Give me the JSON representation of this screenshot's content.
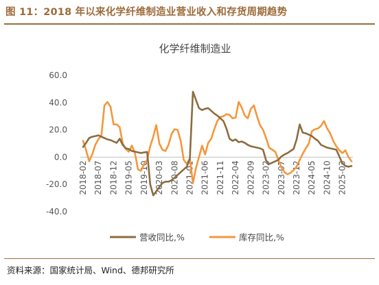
{
  "header": {
    "figure_title": "图 11：2018 年以来化学纤维制造业营业收入和存货周期趋势"
  },
  "footer": {
    "source": "资料来源：国家统计局、Wind、德邦研究所"
  },
  "colors": {
    "brand": "#9c6b3a",
    "revenue": "#8c6b3e",
    "inventory": "#f5963c"
  },
  "chart_data": {
    "type": "line",
    "title": "化学纤维制造业",
    "xlabel": "",
    "ylabel": "",
    "ylim": [
      -40,
      60
    ],
    "yticks": [
      "60.0",
      "40.0",
      "20.0",
      "0.0",
      "-20.0",
      "-40.0"
    ],
    "ytick_values": [
      60,
      40,
      20,
      0,
      -20,
      -40
    ],
    "grid": false,
    "legend_position": "bottom",
    "xticks": [
      "2018-02",
      "2018-07",
      "2018-12",
      "2019-05",
      "2019-10",
      "2020-03",
      "2020-08",
      "2021-01",
      "2021-06",
      "2021-11",
      "2022-04",
      "2022-09",
      "2023-02",
      "2023-07",
      "2023-12",
      "2024-05",
      "2024-10",
      "2025-03"
    ],
    "x": [
      "2018-02",
      "2018-03",
      "2018-04",
      "2018-05",
      "2018-06",
      "2018-07",
      "2018-08",
      "2018-09",
      "2018-10",
      "2018-11",
      "2018-12",
      "2019-01",
      "2019-02",
      "2019-03",
      "2019-04",
      "2019-05",
      "2019-06",
      "2019-07",
      "2019-08",
      "2019-09",
      "2019-10",
      "2019-11",
      "2019-12",
      "2020-01",
      "2020-02",
      "2020-03",
      "2020-04",
      "2020-05",
      "2020-06",
      "2020-07",
      "2020-08",
      "2020-09",
      "2020-10",
      "2020-11",
      "2020-12",
      "2021-01",
      "2021-02",
      "2021-03",
      "2021-04",
      "2021-05",
      "2021-06",
      "2021-07",
      "2021-08",
      "2021-09",
      "2021-10",
      "2021-11",
      "2021-12",
      "2022-01",
      "2022-02",
      "2022-03",
      "2022-04",
      "2022-05",
      "2022-06",
      "2022-07",
      "2022-08",
      "2022-09",
      "2022-10",
      "2022-11",
      "2022-12",
      "2023-01",
      "2023-02",
      "2023-03",
      "2023-04",
      "2023-05",
      "2023-06",
      "2023-07",
      "2023-08",
      "2023-09",
      "2023-10",
      "2023-11",
      "2023-12",
      "2024-01",
      "2024-02",
      "2024-03",
      "2024-04",
      "2024-05",
      "2024-06",
      "2024-07",
      "2024-08",
      "2024-09",
      "2024-10",
      "2024-11",
      "2024-12",
      "2025-01",
      "2025-02",
      "2025-03",
      "2025-04",
      "2025-05",
      "2025-06"
    ],
    "series": [
      {
        "name": "营收同比,%",
        "color": "#8c6b3e",
        "values": [
          7.5,
          10.5,
          14.0,
          15.0,
          15.5,
          16.0,
          15.0,
          14.0,
          13.0,
          12.5,
          11.5,
          10.5,
          13.5,
          9.0,
          6.5,
          6.0,
          4.5,
          4.0,
          3.5,
          3.0,
          3.5,
          3.8,
          -20.0,
          -28.0,
          -25.0,
          -22.0,
          -19.0,
          -18.0,
          -18.0,
          -17.0,
          -15.0,
          -13.0,
          -11.0,
          -9.0,
          -7.0,
          -1.0,
          48.0,
          42.0,
          36.0,
          34.5,
          35.5,
          36.0,
          34.0,
          32.0,
          30.5,
          28.5,
          26.5,
          21.0,
          13.5,
          12.0,
          13.0,
          11.0,
          11.5,
          10.5,
          9.0,
          8.0,
          7.5,
          7.0,
          6.5,
          5.5,
          -2.5,
          -5.0,
          -4.0,
          -3.0,
          -2.0,
          0.5,
          2.0,
          3.0,
          4.5,
          6.0,
          13.0,
          24.0,
          18.0,
          17.5,
          16.5,
          15.5,
          13.5,
          12.0,
          9.0,
          8.0,
          7.0,
          6.5,
          6.0,
          5.5,
          0.5,
          -4.5,
          -6.5,
          -7.0,
          -6.5
        ]
      },
      {
        "name": "库存同比,%",
        "color": "#f5963c",
        "values": [
          12.0,
          5.0,
          -3.0,
          2.0,
          9.0,
          13.0,
          16.0,
          38.0,
          40.5,
          37.0,
          24.0,
          24.0,
          22.0,
          10.0,
          6.0,
          4.0,
          8.5,
          3.0,
          -9.0,
          -10.0,
          -5.0,
          -2.0,
          8.0,
          15.0,
          23.5,
          10.0,
          5.5,
          4.5,
          9.0,
          17.0,
          20.5,
          20.0,
          12.0,
          -2.0,
          -5.0,
          -1.0,
          -19.0,
          -8.0,
          0.0,
          8.5,
          2.0,
          10.5,
          13.5,
          20.5,
          26.5,
          29.5,
          30.0,
          31.5,
          31.0,
          28.5,
          29.0,
          40.5,
          36.5,
          30.5,
          28.5,
          35.5,
          38.0,
          30.0,
          23.5,
          20.0,
          14.0,
          7.0,
          5.5,
          4.0,
          -2.0,
          -7.5,
          -11.0,
          -12.5,
          -11.5,
          -9.5,
          -7.0,
          -2.0,
          2.5,
          6.5,
          10.0,
          19.0,
          20.5,
          21.0,
          23.0,
          26.5,
          21.0,
          17.5,
          12.0,
          8.0,
          5.0,
          3.0,
          5.0,
          0.0,
          -3.0
        ]
      }
    ]
  }
}
